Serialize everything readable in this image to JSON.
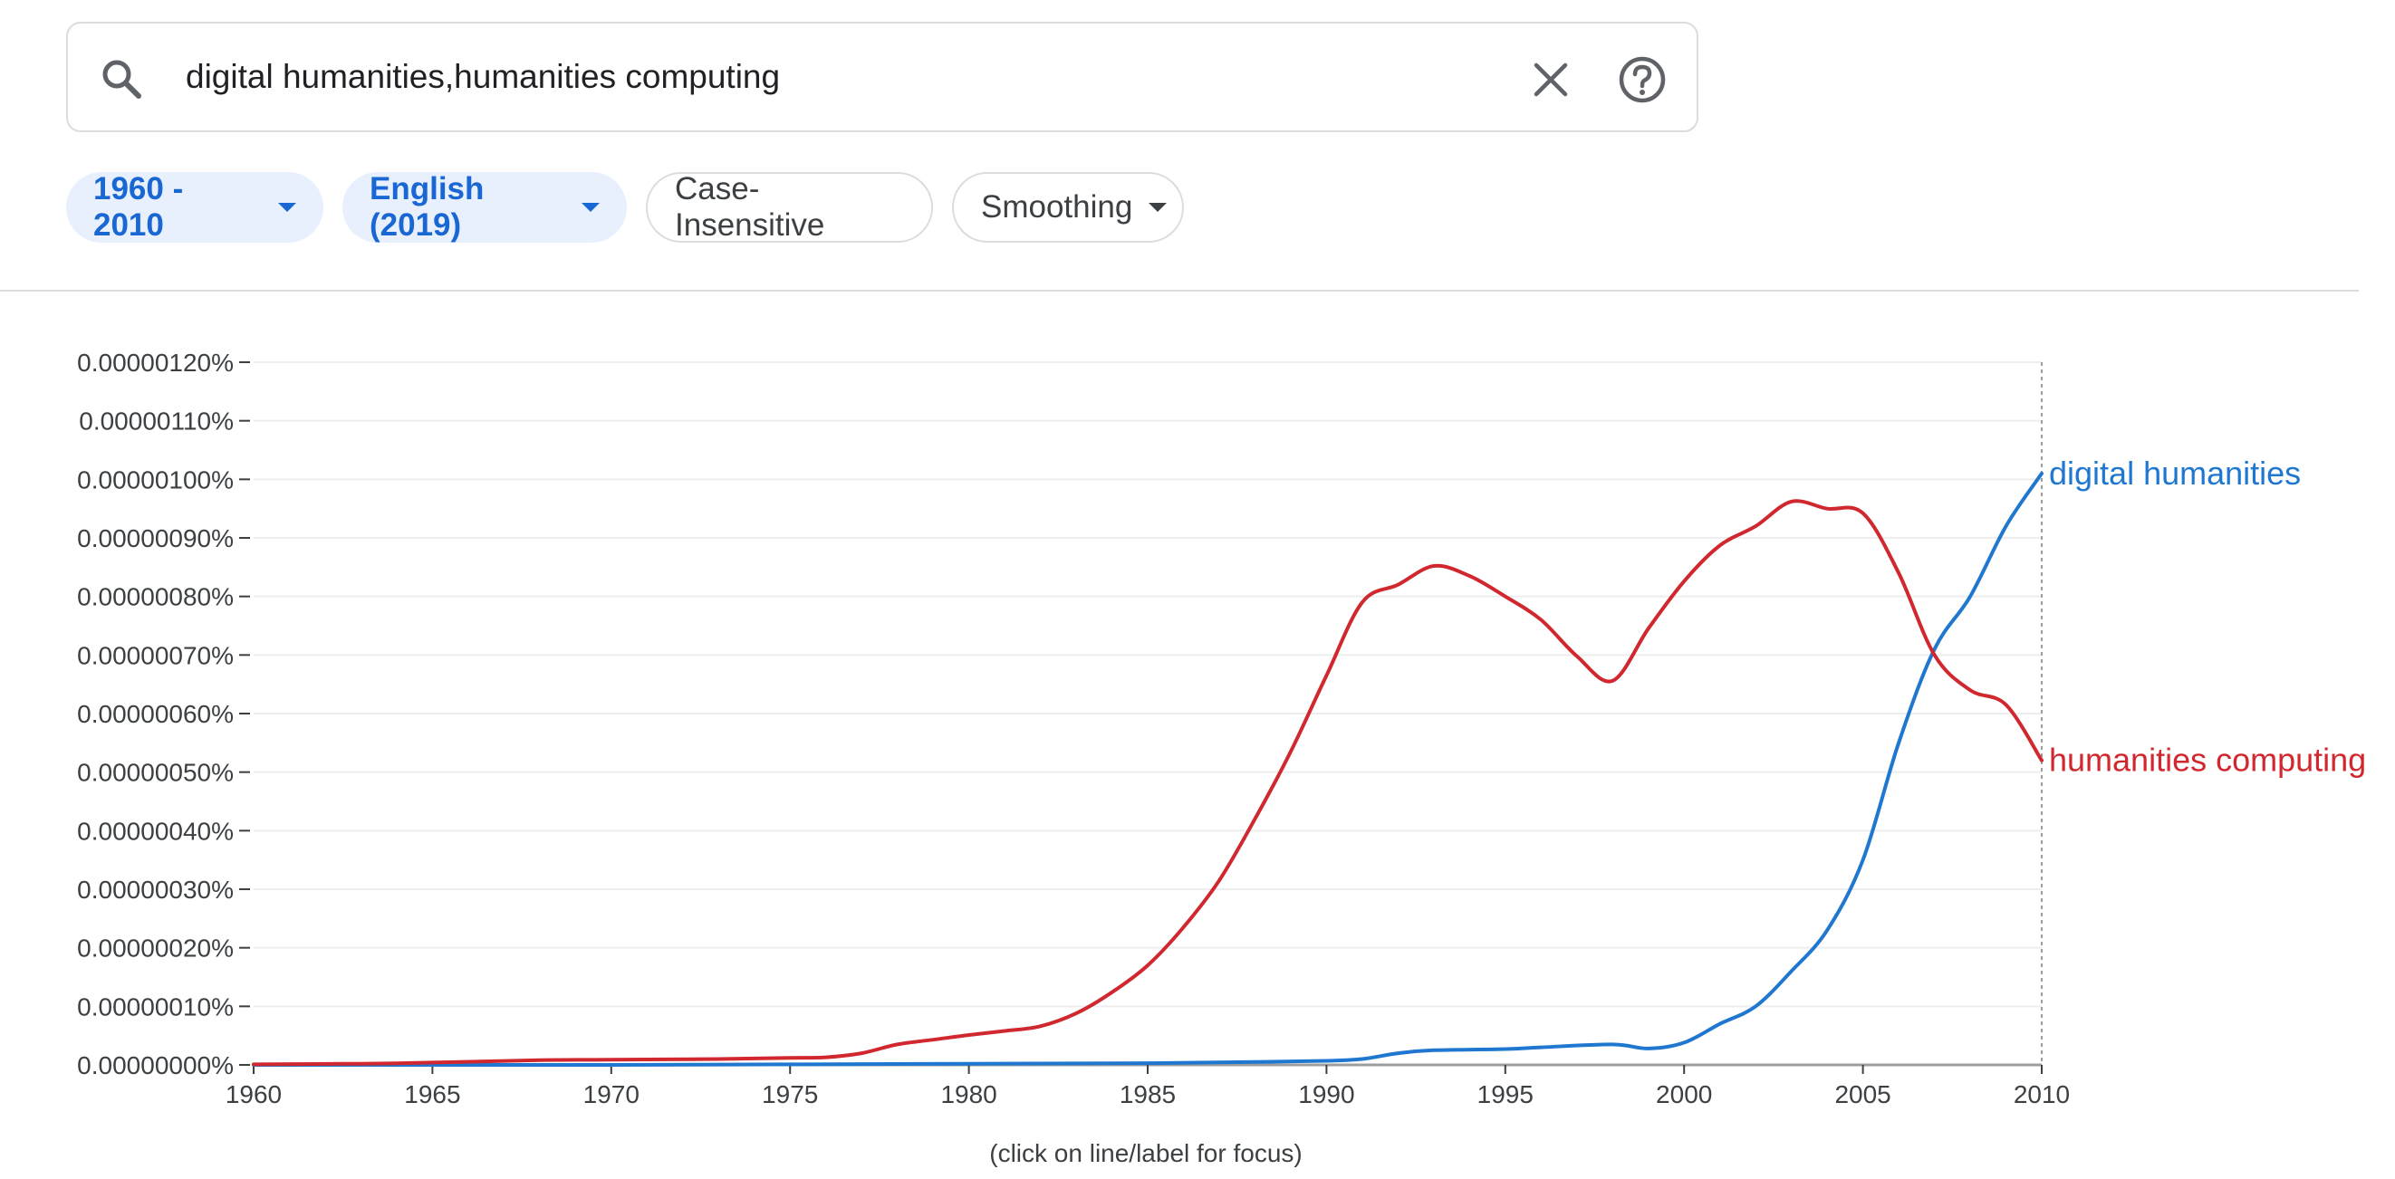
{
  "search": {
    "query": "digital humanities,humanities computing",
    "icon": "search-icon",
    "clear_icon": "close-icon",
    "help_icon": "help-icon"
  },
  "filters": {
    "year_range": "1960 - 2010",
    "corpus": "English (2019)",
    "case": "Case-Insensitive",
    "smoothing": "Smoothing"
  },
  "colors": {
    "digital_humanities": "#1f77d0",
    "humanities_computing": "#d0282e",
    "chip_active_bg": "#e8f0fe",
    "chip_active_text": "#1967d2"
  },
  "chart_data": {
    "type": "line",
    "xlim": [
      1960,
      2010
    ],
    "ylim": [
      0,
      1.2e-06
    ],
    "y_ticks": [
      "0.00000000%",
      "0.00000010%",
      "0.00000020%",
      "0.00000030%",
      "0.00000040%",
      "0.00000050%",
      "0.00000060%",
      "0.00000070%",
      "0.00000080%",
      "0.00000090%",
      "0.00000100%",
      "0.00000110%",
      "0.00000120%"
    ],
    "x_ticks": [
      "1960",
      "1965",
      "1970",
      "1975",
      "1980",
      "1985",
      "1990",
      "1995",
      "2000",
      "2005",
      "2010"
    ],
    "grid": true,
    "focus_line_x": 2010,
    "series": [
      {
        "name": "digital humanities",
        "x": [
          1960,
          1965,
          1970,
          1975,
          1980,
          1985,
          1988,
          1990,
          1991,
          1992,
          1993,
          1995,
          1996,
          1998,
          1999,
          2000,
          2001,
          2002,
          2003,
          2004,
          2005,
          2006,
          2007,
          2008,
          2009,
          2010
        ],
        "y": [
          0,
          0,
          0,
          1e-09,
          2e-09,
          3e-09,
          5e-09,
          7e-09,
          1e-08,
          2e-08,
          2.5e-08,
          2.7e-08,
          3e-08,
          3.5e-08,
          2.8e-08,
          3.8e-08,
          7e-08,
          1e-07,
          1.6e-07,
          2.3e-07,
          3.5e-07,
          5.5e-07,
          7.1e-07,
          8e-07,
          9.2e-07,
          1.01e-06
        ]
      },
      {
        "name": "humanities computing",
        "x": [
          1960,
          1963,
          1965,
          1968,
          1970,
          1973,
          1975,
          1976,
          1977,
          1978,
          1979,
          1980,
          1981,
          1982,
          1983,
          1984,
          1985,
          1986,
          1987,
          1988,
          1989,
          1990,
          1991,
          1992,
          1993,
          1994,
          1995,
          1996,
          1997,
          1998,
          1999,
          2000,
          2001,
          2002,
          2003,
          2004,
          2005,
          2006,
          2007,
          2008,
          2009,
          2010
        ],
        "y": [
          1e-09,
          2e-09,
          4e-09,
          8e-09,
          9e-09,
          1e-08,
          1.2e-08,
          1.3e-08,
          2e-08,
          3.5e-08,
          4.3e-08,
          5.1e-08,
          5.8e-08,
          6.6e-08,
          8.8e-08,
          1.24e-07,
          1.7e-07,
          2.35e-07,
          3.15e-07,
          4.2e-07,
          5.35e-07,
          6.65e-07,
          7.9e-07,
          8.2e-07,
          8.52e-07,
          8.35e-07,
          8e-07,
          7.6e-07,
          6.98e-07,
          6.56e-07,
          7.45e-07,
          8.26e-07,
          8.87e-07,
          9.2e-07,
          9.62e-07,
          9.5e-07,
          9.42e-07,
          8.4e-07,
          7e-07,
          6.4e-07,
          6.15e-07,
          5.2e-07
        ]
      }
    ]
  },
  "caption": "(click on line/label for focus)"
}
